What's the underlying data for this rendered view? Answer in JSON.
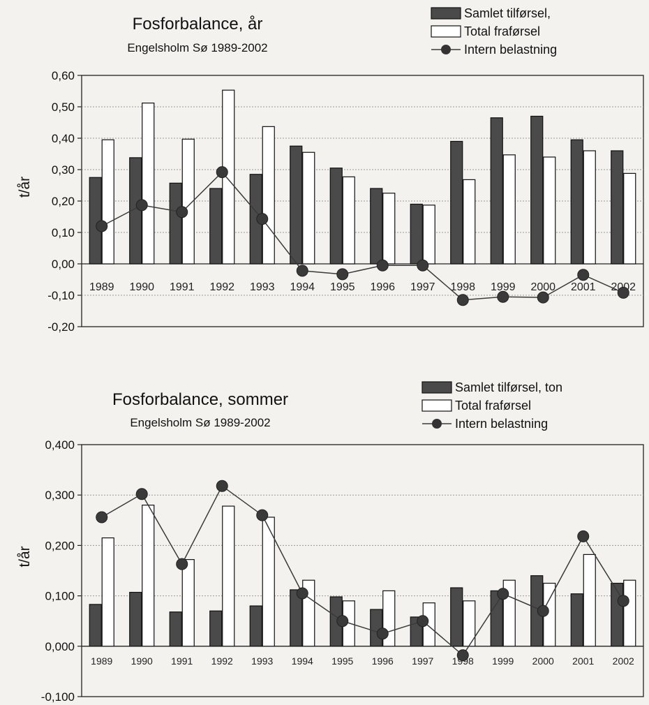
{
  "chart_data": [
    {
      "type": "bar",
      "title": "Fosforbalance, år",
      "subtitle": "Engelsholm Sø 1989-2002",
      "ylabel": "t/år",
      "xlabel": "",
      "ylim": [
        -0.2,
        0.6
      ],
      "yticks": [
        "0,60",
        "0,50",
        "0,40",
        "0,30",
        "0,20",
        "0,10",
        "0,00",
        "-0,10",
        "-0,20"
      ],
      "ytick_values": [
        0.6,
        0.5,
        0.4,
        0.3,
        0.2,
        0.1,
        0.0,
        -0.1,
        -0.2
      ],
      "grid": true,
      "legend_position": "top-right",
      "categories": [
        "1989",
        "1990",
        "1991",
        "1992",
        "1993",
        "1994",
        "1995",
        "1996",
        "1997",
        "1998",
        "1999",
        "2000",
        "2001",
        "2002"
      ],
      "series": [
        {
          "name": "Samlet tilførsel,",
          "kind": "bar",
          "color": "#4a4a4a",
          "values": [
            0.275,
            0.338,
            0.257,
            0.24,
            0.285,
            0.375,
            0.305,
            0.24,
            0.19,
            0.39,
            0.465,
            0.47,
            0.395,
            0.36
          ]
        },
        {
          "name": "Total fraførsel",
          "kind": "bar",
          "color": "#ffffff",
          "values": [
            0.395,
            0.512,
            0.397,
            0.553,
            0.437,
            0.355,
            0.277,
            0.225,
            0.187,
            0.268,
            0.347,
            0.34,
            0.36,
            0.288
          ]
        },
        {
          "name": "Intern belastning",
          "kind": "line",
          "color": "#3a3a3a",
          "values": [
            0.12,
            0.187,
            0.165,
            0.292,
            0.143,
            -0.022,
            -0.033,
            -0.005,
            -0.005,
            -0.115,
            -0.105,
            -0.107,
            -0.035,
            -0.092
          ]
        }
      ]
    },
    {
      "type": "bar",
      "title": "Fosforbalance, sommer",
      "subtitle": "Engelsholm Sø 1989-2002",
      "ylabel": "t/år",
      "xlabel": "",
      "ylim": [
        -0.1,
        0.4
      ],
      "yticks": [
        "0,400",
        "0,300",
        "0,200",
        "0,100",
        "0,000",
        "-0,100"
      ],
      "ytick_values": [
        0.4,
        0.3,
        0.2,
        0.1,
        0.0,
        -0.1
      ],
      "grid": true,
      "legend_position": "top-right",
      "categories": [
        "1989",
        "1990",
        "1991",
        "1992",
        "1993",
        "1994",
        "1995",
        "1996",
        "1997",
        "1998",
        "1999",
        "2000",
        "2001",
        "2002"
      ],
      "series": [
        {
          "name": "Samlet tilførsel, ton",
          "kind": "bar",
          "color": "#4a4a4a",
          "values": [
            0.083,
            0.107,
            0.068,
            0.07,
            0.08,
            0.112,
            0.098,
            0.073,
            0.058,
            0.116,
            0.11,
            0.14,
            0.104,
            0.125
          ]
        },
        {
          "name": "Total fraførsel",
          "kind": "bar",
          "color": "#ffffff",
          "values": [
            0.215,
            0.28,
            0.172,
            0.278,
            0.256,
            0.131,
            0.09,
            0.11,
            0.086,
            0.09,
            0.131,
            0.125,
            0.182,
            0.131
          ]
        },
        {
          "name": "Intern belastning",
          "kind": "line",
          "color": "#3a3a3a",
          "values": [
            0.256,
            0.302,
            0.163,
            0.318,
            0.26,
            0.105,
            0.05,
            0.025,
            0.05,
            -0.018,
            0.104,
            0.07,
            0.218,
            0.09
          ]
        }
      ]
    }
  ]
}
